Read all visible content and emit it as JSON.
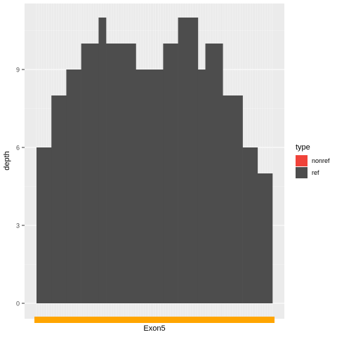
{
  "chart_data": {
    "type": "area",
    "ylabel": "depth",
    "xlabel": "",
    "ylim": [
      0,
      11
    ],
    "y_ticks": [
      0,
      3,
      6,
      9
    ],
    "grid": true,
    "legend_placement": "right",
    "legend": {
      "title": "type",
      "entries": [
        {
          "name": "nonref",
          "color": "#f0433a"
        },
        {
          "name": "ref",
          "color": "#4d4d4d"
        }
      ]
    },
    "bins": 95,
    "series": [
      {
        "name": "ref",
        "color": "#4d4d4d",
        "segments": [
          {
            "from": 0,
            "to": 6,
            "depth": 6
          },
          {
            "from": 6,
            "to": 12,
            "depth": 8
          },
          {
            "from": 12,
            "to": 18,
            "depth": 9
          },
          {
            "from": 18,
            "to": 25,
            "depth": 10
          },
          {
            "from": 25,
            "to": 28,
            "depth": 11
          },
          {
            "from": 28,
            "to": 40,
            "depth": 10
          },
          {
            "from": 40,
            "to": 51,
            "depth": 9
          },
          {
            "from": 51,
            "to": 57,
            "depth": 10
          },
          {
            "from": 57,
            "to": 65,
            "depth": 11
          },
          {
            "from": 65,
            "to": 68,
            "depth": 9
          },
          {
            "from": 68,
            "to": 75,
            "depth": 10
          },
          {
            "from": 75,
            "to": 83,
            "depth": 8
          },
          {
            "from": 83,
            "to": 89,
            "depth": 6
          },
          {
            "from": 89,
            "to": 95,
            "depth": 5
          }
        ]
      },
      {
        "name": "nonref",
        "color": "#f0433a",
        "segments": []
      }
    ],
    "exon_track": {
      "label": "Exon5",
      "color": "#ffa500"
    }
  }
}
